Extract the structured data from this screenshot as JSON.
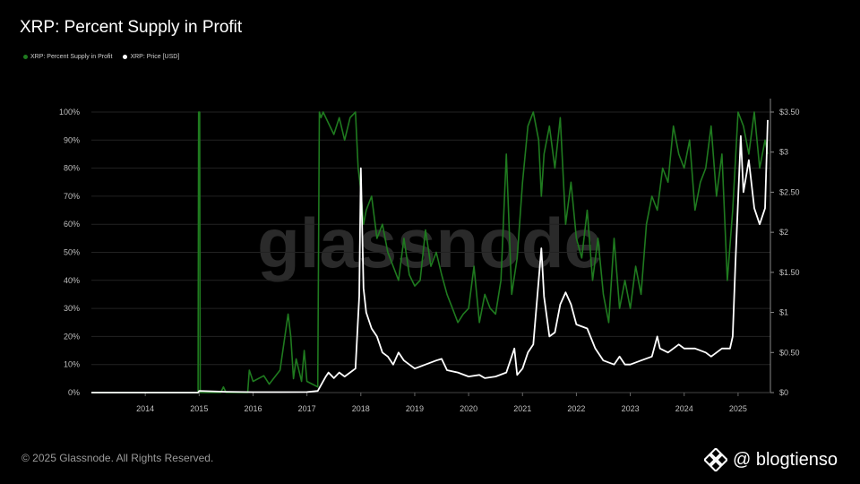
{
  "chart_data": {
    "type": "line",
    "title": "XRP: Percent Supply in Profit",
    "legend_placement": "top-left",
    "grid": "horizontal",
    "x_ticks": [
      "2014",
      "2015",
      "2016",
      "2017",
      "2018",
      "2019",
      "2020",
      "2021",
      "2022",
      "2023",
      "2024",
      "2025"
    ],
    "xlim": [
      2013.0,
      2025.6
    ],
    "y_left": {
      "ylim": [
        0,
        100
      ],
      "ticks": [
        "0%",
        "10%",
        "20%",
        "30%",
        "40%",
        "50%",
        "60%",
        "70%",
        "80%",
        "90%",
        "100%"
      ]
    },
    "y_right": {
      "ylim": [
        0,
        3.5
      ],
      "ticks": [
        "$0",
        "$0.50",
        "$1",
        "$1.50",
        "$2",
        "$2.50",
        "$3",
        "$3.50"
      ]
    },
    "series": [
      {
        "name": "XRP: Percent Supply in Profit",
        "axis": "left",
        "color": "#1f7a1f",
        "x": [
          2013.0,
          2014.98,
          2014.99,
          2015.01,
          2015.02,
          2015.4,
          2015.45,
          2015.5,
          2015.9,
          2015.93,
          2016.0,
          2016.2,
          2016.3,
          2016.5,
          2016.65,
          2016.7,
          2016.75,
          2016.8,
          2016.9,
          2016.95,
          2017.0,
          2017.1,
          2017.2,
          2017.23,
          2017.26,
          2017.3,
          2017.4,
          2017.5,
          2017.6,
          2017.7,
          2017.8,
          2017.9,
          2017.95,
          2018.0,
          2018.05,
          2018.1,
          2018.2,
          2018.3,
          2018.4,
          2018.5,
          2018.6,
          2018.7,
          2018.8,
          2018.9,
          2019.0,
          2019.1,
          2019.2,
          2019.3,
          2019.4,
          2019.5,
          2019.6,
          2019.7,
          2019.8,
          2019.9,
          2020.0,
          2020.1,
          2020.2,
          2020.3,
          2020.4,
          2020.5,
          2020.6,
          2020.7,
          2020.8,
          2020.9,
          2021.0,
          2021.1,
          2021.2,
          2021.3,
          2021.35,
          2021.4,
          2021.5,
          2021.6,
          2021.7,
          2021.8,
          2021.9,
          2022.0,
          2022.1,
          2022.2,
          2022.3,
          2022.4,
          2022.5,
          2022.6,
          2022.7,
          2022.8,
          2022.9,
          2023.0,
          2023.1,
          2023.2,
          2023.3,
          2023.4,
          2023.5,
          2023.6,
          2023.7,
          2023.8,
          2023.9,
          2024.0,
          2024.1,
          2024.2,
          2024.3,
          2024.4,
          2024.5,
          2024.6,
          2024.7,
          2024.8,
          2024.9,
          2025.0,
          2025.1,
          2025.2,
          2025.3,
          2025.4,
          2025.5,
          2025.55
        ],
        "values": [
          0,
          0,
          100,
          100,
          0,
          0,
          2,
          0,
          0,
          8,
          4,
          6,
          3,
          8,
          28,
          20,
          5,
          12,
          4,
          15,
          4,
          3,
          2,
          100,
          98,
          100,
          96,
          92,
          98,
          90,
          98,
          100,
          80,
          72,
          60,
          65,
          70,
          55,
          60,
          50,
          45,
          40,
          55,
          42,
          38,
          40,
          58,
          45,
          50,
          42,
          35,
          30,
          25,
          28,
          30,
          45,
          25,
          35,
          30,
          28,
          40,
          85,
          35,
          48,
          75,
          95,
          100,
          90,
          70,
          85,
          95,
          80,
          98,
          60,
          75,
          55,
          48,
          65,
          40,
          55,
          35,
          25,
          55,
          30,
          40,
          30,
          45,
          35,
          60,
          70,
          65,
          80,
          75,
          95,
          85,
          80,
          90,
          65,
          75,
          80,
          95,
          70,
          85,
          40,
          65,
          100,
          95,
          85,
          100,
          80,
          90,
          85
        ]
      },
      {
        "name": "XRP: Price [USD]",
        "axis": "right",
        "color": "#ffffff",
        "x": [
          2013.0,
          2014.0,
          2014.98,
          2015.0,
          2015.5,
          2016.0,
          2016.5,
          2017.0,
          2017.2,
          2017.35,
          2017.4,
          2017.5,
          2017.6,
          2017.7,
          2017.8,
          2017.9,
          2017.97,
          2018.0,
          2018.05,
          2018.1,
          2018.2,
          2018.3,
          2018.4,
          2018.5,
          2018.6,
          2018.7,
          2018.75,
          2018.8,
          2018.9,
          2019.0,
          2019.2,
          2019.4,
          2019.5,
          2019.6,
          2019.8,
          2020.0,
          2020.2,
          2020.3,
          2020.5,
          2020.7,
          2020.85,
          2020.9,
          2021.0,
          2021.1,
          2021.2,
          2021.3,
          2021.35,
          2021.4,
          2021.5,
          2021.6,
          2021.7,
          2021.8,
          2021.9,
          2022.0,
          2022.2,
          2022.35,
          2022.5,
          2022.7,
          2022.8,
          2022.9,
          2023.0,
          2023.2,
          2023.4,
          2023.5,
          2023.55,
          2023.7,
          2023.9,
          2024.0,
          2024.2,
          2024.4,
          2024.5,
          2024.7,
          2024.85,
          2024.9,
          2024.95,
          2025.0,
          2025.05,
          2025.1,
          2025.2,
          2025.3,
          2025.4,
          2025.5,
          2025.55
        ],
        "values": [
          0,
          0,
          0,
          0.02,
          0.01,
          0.006,
          0.006,
          0.007,
          0.02,
          0.2,
          0.25,
          0.18,
          0.25,
          0.2,
          0.25,
          0.3,
          1.2,
          2.8,
          1.3,
          1.0,
          0.8,
          0.7,
          0.5,
          0.45,
          0.35,
          0.5,
          0.45,
          0.4,
          0.35,
          0.3,
          0.35,
          0.4,
          0.42,
          0.28,
          0.25,
          0.2,
          0.22,
          0.18,
          0.2,
          0.25,
          0.55,
          0.22,
          0.3,
          0.5,
          0.6,
          1.4,
          1.8,
          1.2,
          0.7,
          0.75,
          1.1,
          1.25,
          1.1,
          0.85,
          0.8,
          0.55,
          0.4,
          0.35,
          0.45,
          0.35,
          0.35,
          0.4,
          0.45,
          0.7,
          0.55,
          0.5,
          0.6,
          0.55,
          0.55,
          0.5,
          0.45,
          0.55,
          0.55,
          0.7,
          1.6,
          2.4,
          3.2,
          2.5,
          2.9,
          2.3,
          2.1,
          2.3,
          3.4
        ]
      }
    ]
  },
  "watermark": "glassnode",
  "footer": {
    "copyright": "© 2025 Glassnode. All Rights Reserved."
  },
  "brand": {
    "handle": "@ blogtienso",
    "icon": "binance-diamond-icon"
  }
}
